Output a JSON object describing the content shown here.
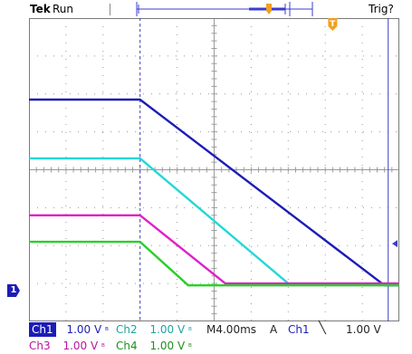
{
  "header": {
    "brand": "Tek",
    "run_status": "Run",
    "trigger_status": "Trig?",
    "colors": {
      "trigger_marker": "#f0a020",
      "record_bar": "#3b3bd0"
    }
  },
  "readouts": {
    "ch1": {
      "label": "Ch1",
      "scale": "1.00 V",
      "coupling_icon": "bandwidth-limit-icon"
    },
    "ch2": {
      "label": "Ch2",
      "scale": "1.00 V",
      "coupling_icon": "bandwidth-limit-icon"
    },
    "ch3": {
      "label": "Ch3",
      "scale": "1.00 V",
      "coupling_icon": "bandwidth-limit-icon"
    },
    "ch4": {
      "label": "Ch4",
      "scale": "1.00 V",
      "coupling_icon": "bandwidth-limit-icon"
    },
    "timebase": "M4.00ms",
    "trigger": {
      "mode": "A",
      "source": "Ch1",
      "slope_icon": "falling-edge-icon",
      "level": "1.00 V"
    }
  },
  "ground_marker": "1",
  "trigger_marker": "T",
  "chart_data": {
    "type": "line",
    "x_unit": "div",
    "y_unit": "div",
    "xlim": [
      0,
      10
    ],
    "ylim": [
      -4,
      4
    ],
    "grid": true,
    "series": [
      {
        "name": "Ch1",
        "color": "#1c1cb8",
        "x": [
          0,
          3.0,
          9.6,
          10
        ],
        "y": [
          1.85,
          1.85,
          -3.05,
          -3.05
        ]
      },
      {
        "name": "Ch2",
        "color": "#22d8d8",
        "x": [
          0,
          3.0,
          7.0,
          10
        ],
        "y": [
          0.3,
          0.3,
          -3.0,
          -3.0
        ]
      },
      {
        "name": "Ch3",
        "color": "#e020c8",
        "x": [
          0,
          3.0,
          5.3,
          10
        ],
        "y": [
          -1.2,
          -1.2,
          -3.0,
          -3.0
        ]
      },
      {
        "name": "Ch4",
        "color": "#28d028",
        "x": [
          0,
          3.0,
          4.3,
          10
        ],
        "y": [
          -1.9,
          -1.9,
          -3.05,
          -3.05
        ]
      }
    ]
  }
}
